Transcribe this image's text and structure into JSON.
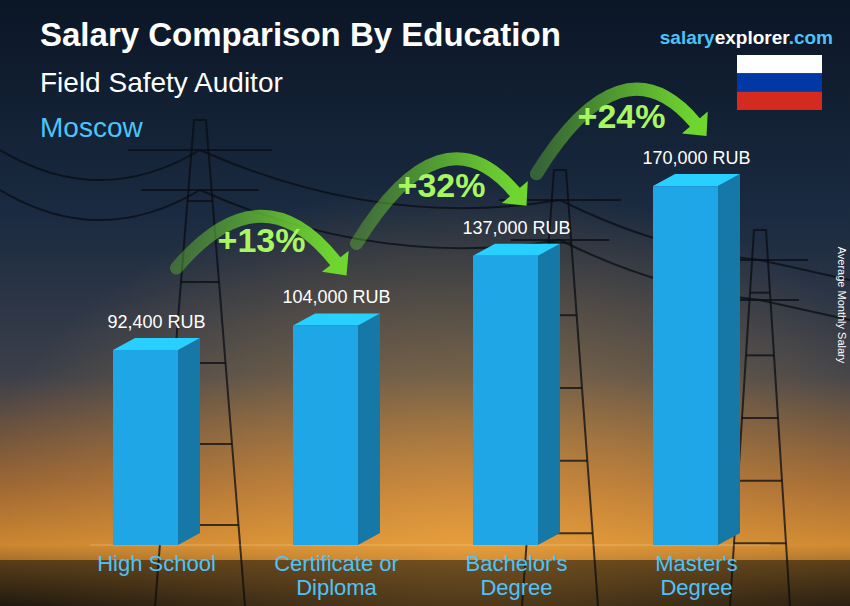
{
  "chart_data": {
    "type": "bar",
    "title": "Salary Comparison By Education",
    "subtitle": "Field Safety Auditor",
    "location": "Moscow",
    "source": [
      "salary",
      "explorer",
      ".com"
    ],
    "y_label": "Average Monthly Salary",
    "categories": [
      "High School",
      "Certificate or Diploma",
      "Bachelor's Degree",
      "Master's Degree"
    ],
    "values": [
      92400,
      104000,
      137000,
      170000
    ],
    "value_labels": [
      "92,400 RUB",
      "104,000 RUB",
      "137,000 RUB",
      "170,000 RUB"
    ],
    "data_labels": true,
    "color": "#1fa6e6",
    "changes": {
      "values": [
        13,
        32,
        24
      ],
      "value_labels": [
        "+13%",
        "+32%",
        "+24%"
      ],
      "color": "#6fd630"
    },
    "ylim": [
      0,
      180000
    ],
    "tick_labels": "x",
    "grid": false
  }
}
